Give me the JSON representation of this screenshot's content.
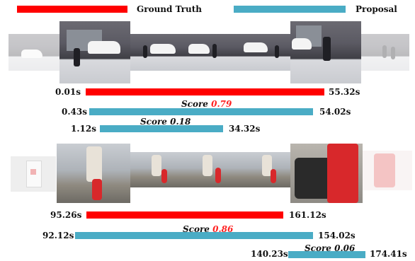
{
  "legend": {
    "ground_truth_label": "Ground Truth",
    "proposal_label": "Proposal"
  },
  "colors": {
    "ground_truth": "#ff0000",
    "proposal": "#4aacc5",
    "score_highlight": "#ff2020"
  },
  "rows": [
    {
      "ground_truth": {
        "start": "0.01s",
        "end": "55.32s"
      },
      "proposals": [
        {
          "start": "0.43s",
          "end": "54.02s",
          "score_prefix": "Score ",
          "score_value": "0.79",
          "highlight": true
        },
        {
          "start": "1.12s",
          "end": "34.32s",
          "score_prefix": "Score ",
          "score_value": "0.18",
          "highlight": false
        }
      ]
    },
    {
      "ground_truth": {
        "start": "95.26s",
        "end": "161.12s"
      },
      "proposals": [
        {
          "start": "92.12s",
          "end": "154.02s",
          "score_prefix": "Score ",
          "score_value": "0.86",
          "highlight": true
        },
        {
          "start": "140.23s",
          "end": "174.41s",
          "score_prefix": "Score ",
          "score_value": "0.06",
          "highlight": false
        }
      ]
    }
  ]
}
